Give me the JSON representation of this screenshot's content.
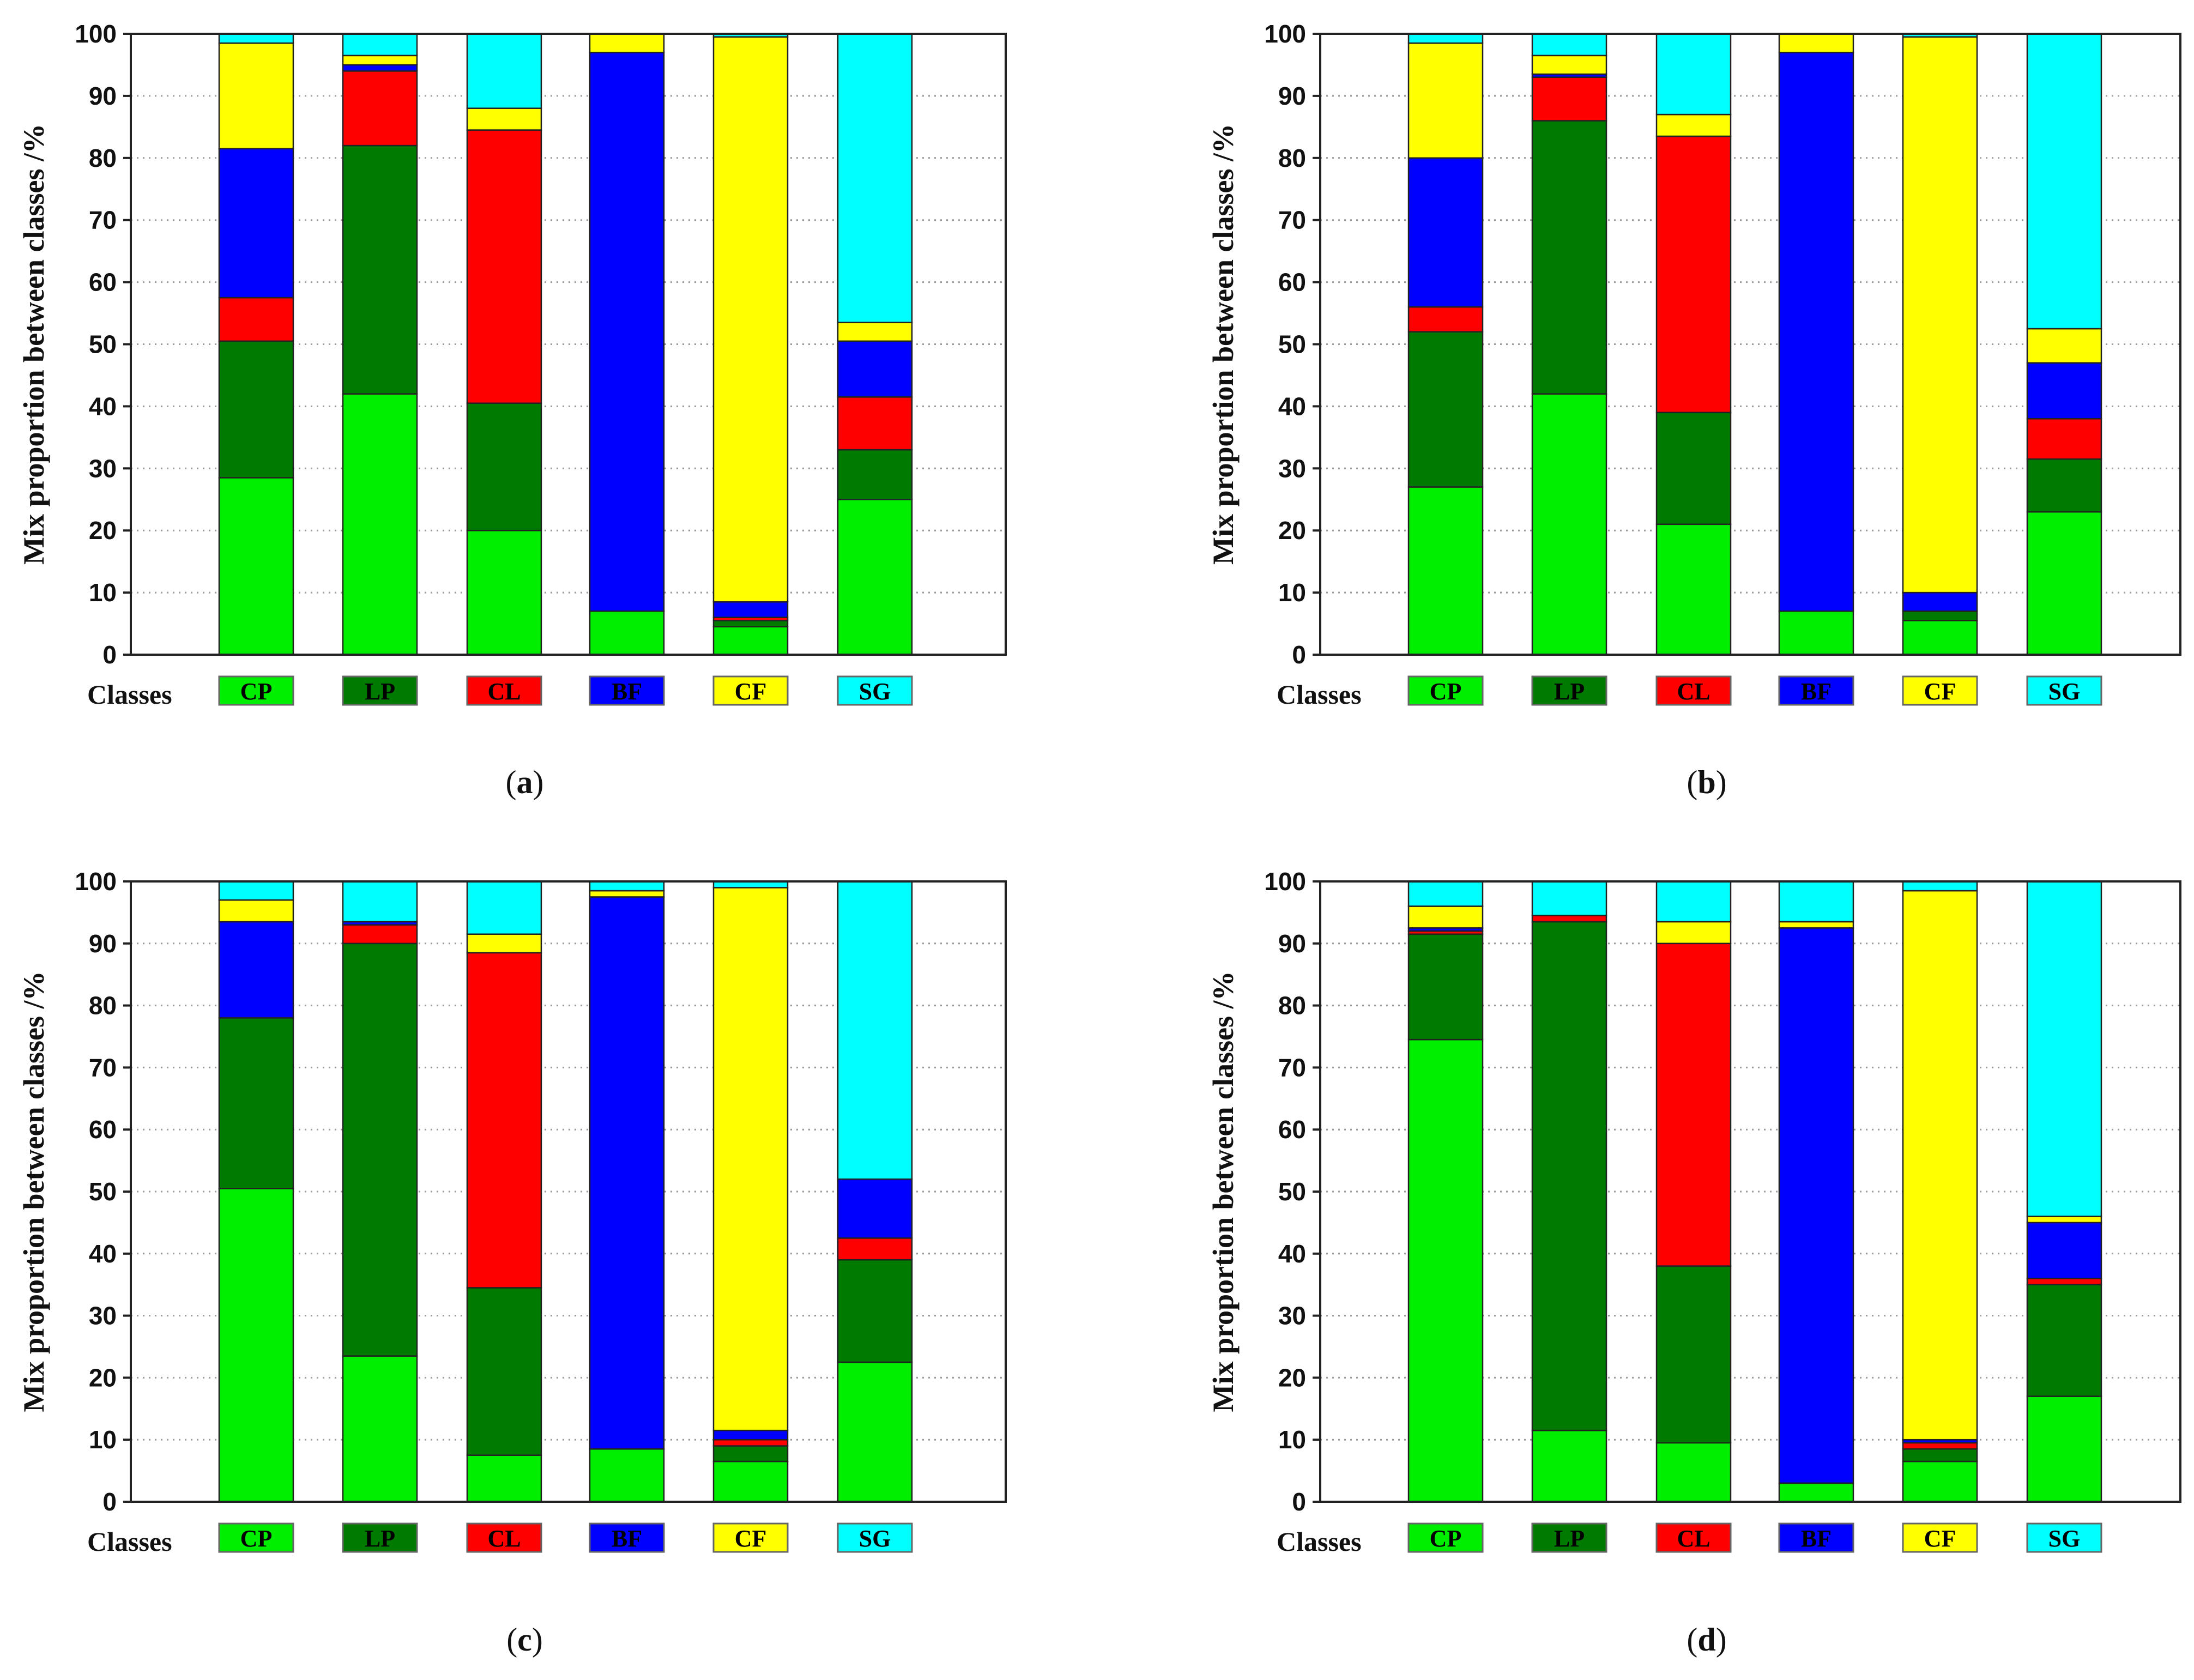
{
  "chart_data": [
    {
      "type": "stacked-bar",
      "panel_label": "a",
      "ylabel": "Mix proportion between classes /%",
      "ylim": [
        0,
        100
      ],
      "yticks": [
        "0",
        "10",
        "20",
        "30",
        "40",
        "50",
        "60",
        "70",
        "80",
        "90",
        "100"
      ],
      "grid": "horizontal dotted",
      "xlabel": "Classes",
      "categories": [
        "CP",
        "LP",
        "CL",
        "BF",
        "CF",
        "SG"
      ],
      "series": [
        {
          "name": "CP",
          "values": [
            28.5,
            42.0,
            20.0,
            7.0,
            4.5,
            25.0
          ]
        },
        {
          "name": "LP",
          "values": [
            22.0,
            40.0,
            20.5,
            0.0,
            1.0,
            8.0
          ]
        },
        {
          "name": "CL",
          "values": [
            7.0,
            12.0,
            44.0,
            0.0,
            0.5,
            8.5
          ]
        },
        {
          "name": "BF",
          "values": [
            24.0,
            1.0,
            0.0,
            90.0,
            2.5,
            9.0
          ]
        },
        {
          "name": "CF",
          "values": [
            17.0,
            1.5,
            3.5,
            3.0,
            91.0,
            3.0
          ]
        },
        {
          "name": "SG",
          "values": [
            1.5,
            3.5,
            12.0,
            0.0,
            0.5,
            46.5
          ]
        }
      ]
    },
    {
      "type": "stacked-bar",
      "panel_label": "b",
      "ylabel": "Mix proportion between classes /%",
      "ylim": [
        0,
        100
      ],
      "yticks": [
        "0",
        "10",
        "20",
        "30",
        "40",
        "50",
        "60",
        "70",
        "80",
        "90",
        "100"
      ],
      "grid": "horizontal dotted",
      "xlabel": "Classes",
      "categories": [
        "CP",
        "LP",
        "CL",
        "BF",
        "CF",
        "SG"
      ],
      "series": [
        {
          "name": "CP",
          "values": [
            27.0,
            42.0,
            21.0,
            7.0,
            5.5,
            23.0
          ]
        },
        {
          "name": "LP",
          "values": [
            25.0,
            44.0,
            18.0,
            0.0,
            1.5,
            8.5
          ]
        },
        {
          "name": "CL",
          "values": [
            4.0,
            7.0,
            44.5,
            0.0,
            0.0,
            6.5
          ]
        },
        {
          "name": "BF",
          "values": [
            24.0,
            0.5,
            0.0,
            90.0,
            3.0,
            9.0
          ]
        },
        {
          "name": "CF",
          "values": [
            18.5,
            3.0,
            3.5,
            3.0,
            89.5,
            5.5
          ]
        },
        {
          "name": "SG",
          "values": [
            1.5,
            3.5,
            13.0,
            0.0,
            0.5,
            47.5
          ]
        }
      ]
    },
    {
      "type": "stacked-bar",
      "panel_label": "c",
      "ylabel": "Mix proportion between classes /%",
      "ylim": [
        0,
        100
      ],
      "yticks": [
        "0",
        "10",
        "20",
        "30",
        "40",
        "50",
        "60",
        "70",
        "80",
        "90",
        "100"
      ],
      "grid": "horizontal dotted",
      "xlabel": "Classes",
      "categories": [
        "CP",
        "LP",
        "CL",
        "BF",
        "CF",
        "SG"
      ],
      "series": [
        {
          "name": "CP",
          "values": [
            50.5,
            23.5,
            7.5,
            8.5,
            6.5,
            22.5
          ]
        },
        {
          "name": "LP",
          "values": [
            27.5,
            66.5,
            27.0,
            0.0,
            2.5,
            16.5
          ]
        },
        {
          "name": "CL",
          "values": [
            0.0,
            3.0,
            54.0,
            0.0,
            1.0,
            3.5
          ]
        },
        {
          "name": "BF",
          "values": [
            15.5,
            0.5,
            0.0,
            89.0,
            1.5,
            9.5
          ]
        },
        {
          "name": "CF",
          "values": [
            3.5,
            0.0,
            3.0,
            1.0,
            87.5,
            0.0
          ]
        },
        {
          "name": "SG",
          "values": [
            3.0,
            6.5,
            8.5,
            1.5,
            1.0,
            48.0
          ]
        }
      ]
    },
    {
      "type": "stacked-bar",
      "panel_label": "d",
      "ylabel": "Mix proportion between classes /%",
      "ylim": [
        0,
        100
      ],
      "yticks": [
        "0",
        "10",
        "20",
        "30",
        "40",
        "50",
        "60",
        "70",
        "80",
        "90",
        "100"
      ],
      "grid": "horizontal dotted",
      "xlabel": "Classes",
      "categories": [
        "CP",
        "LP",
        "CL",
        "BF",
        "CF",
        "SG"
      ],
      "series": [
        {
          "name": "CP",
          "values": [
            74.5,
            11.5,
            9.5,
            3.0,
            6.5,
            17.0
          ]
        },
        {
          "name": "LP",
          "values": [
            17.0,
            82.0,
            28.5,
            0.0,
            2.0,
            18.0
          ]
        },
        {
          "name": "CL",
          "values": [
            0.5,
            1.0,
            52.0,
            0.0,
            1.0,
            1.0
          ]
        },
        {
          "name": "BF",
          "values": [
            0.5,
            0.0,
            0.0,
            89.5,
            0.5,
            9.0
          ]
        },
        {
          "name": "CF",
          "values": [
            3.5,
            0.0,
            3.5,
            1.0,
            88.5,
            1.0
          ]
        },
        {
          "name": "SG",
          "values": [
            4.0,
            5.5,
            6.5,
            6.5,
            1.5,
            54.0
          ]
        }
      ]
    }
  ],
  "legend_colors": {
    "CP": "#00ee00",
    "LP": "#007a00",
    "CL": "#ff0000",
    "BF": "#0000ff",
    "CF": "#ffff00",
    "SG": "#00ffff"
  }
}
